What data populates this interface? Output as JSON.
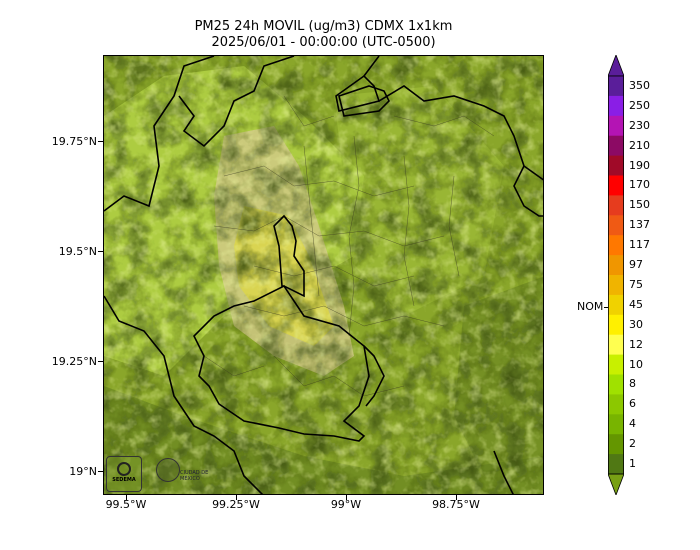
{
  "title": {
    "line1": "PM25 24h MOVIL (ug/m3) CDMX 1x1km",
    "line2": "2025/06/01 - 00:00:00 (UTC-0500)"
  },
  "axes": {
    "y_labels": [
      "19.75°N",
      "19.5°N",
      "19.25°N",
      "19°N"
    ],
    "x_labels": [
      "99.5°W",
      "99.25°W",
      "99°W",
      "98.75°W"
    ]
  },
  "colorbar": {
    "labels": [
      "350",
      "250",
      "230",
      "210",
      "190",
      "170",
      "150",
      "137",
      "117",
      "97",
      "75",
      "45",
      "30",
      "12",
      "10",
      "8",
      "6",
      "4",
      "2",
      "1"
    ],
    "colors": [
      "#5a1e9a",
      "#8a1ee6",
      "#b414b4",
      "#8c0a64",
      "#a00a28",
      "#ff0000",
      "#e63c1e",
      "#f05a14",
      "#ff7800",
      "#f09600",
      "#f0b400",
      "#f0d200",
      "#fff000",
      "#ffff50",
      "#c8f000",
      "#a0e100",
      "#8cc800",
      "#78b400",
      "#649600",
      "#507814"
    ],
    "side_label": "NOM",
    "extend_top_color": "#5a1e9a",
    "extend_bottom_color": "#78a014"
  },
  "logos": {
    "left": "SEDEMA",
    "right": "CIUDAD DE MÉXICO"
  },
  "map_colors": {
    "base": "#8aa62a",
    "light": "#b8d84a",
    "urban": "#d2c98a",
    "yellow": "#dcd64a",
    "dark": "#5f7a1e"
  }
}
